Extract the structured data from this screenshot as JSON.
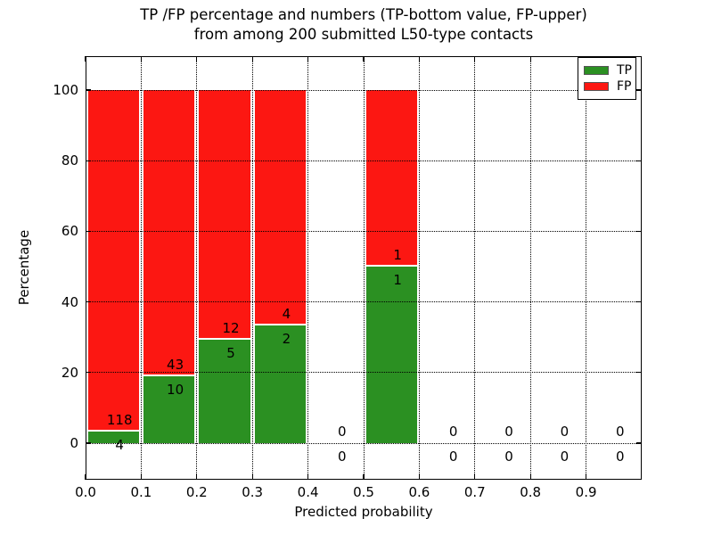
{
  "figure": {
    "title_line1": "TP /FP percentage and numbers (TP-bottom value, FP-upper)",
    "title_line2": "from among 200 submitted L50-type contacts",
    "background": "#ffffff"
  },
  "axes": {
    "xlabel": "Predicted probability",
    "ylabel": "Percentage",
    "x_tick_labels": [
      "0.0",
      "0.1",
      "0.2",
      "0.3",
      "0.4",
      "0.5",
      "0.6",
      "0.7",
      "0.8",
      "0.9"
    ],
    "y_tick_labels": [
      "0",
      "20",
      "40",
      "60",
      "80",
      "100"
    ],
    "grid_style": "dotted"
  },
  "legend": {
    "position": "upper right",
    "entries": [
      {
        "label": "TP",
        "color": "#2b9022"
      },
      {
        "label": "FP",
        "color": "#fc1712"
      }
    ]
  },
  "chart_data": {
    "type": "bar",
    "stacked": true,
    "title": "TP /FP percentage and numbers (TP-bottom value, FP-upper) from among 200 submitted L50-type contacts",
    "xlabel": "Predicted probability",
    "ylabel": "Percentage",
    "bins": [
      "0.0-0.1",
      "0.1-0.2",
      "0.2-0.3",
      "0.3-0.4",
      "0.4-0.5",
      "0.5-0.6",
      "0.6-0.7",
      "0.7-0.8",
      "0.8-0.9",
      "0.9-1.0"
    ],
    "series": [
      {
        "name": "TP",
        "color": "#2b9022",
        "counts": [
          4,
          10,
          5,
          2,
          0,
          1,
          0,
          0,
          0,
          0
        ],
        "percent": [
          3.28,
          18.87,
          29.41,
          33.33,
          0,
          50,
          0,
          0,
          0,
          0
        ]
      },
      {
        "name": "FP",
        "color": "#fc1712",
        "counts": [
          118,
          43,
          12,
          4,
          0,
          1,
          0,
          0,
          0,
          0
        ],
        "percent": [
          96.72,
          81.13,
          70.59,
          66.67,
          0,
          50,
          0,
          0,
          0,
          0
        ]
      }
    ],
    "total_contacts": 200,
    "bar_totals_reach": 100,
    "xlim": [
      0.0,
      1.0
    ],
    "ylim": [
      -10.4,
      110.1
    ],
    "xticks": [
      0.0,
      0.1,
      0.2,
      0.3,
      0.4,
      0.5,
      0.6,
      0.7,
      0.8,
      0.9
    ],
    "yticks": [
      0,
      20,
      40,
      60,
      80,
      100
    ],
    "grid": true,
    "legend_position": "upper right"
  }
}
